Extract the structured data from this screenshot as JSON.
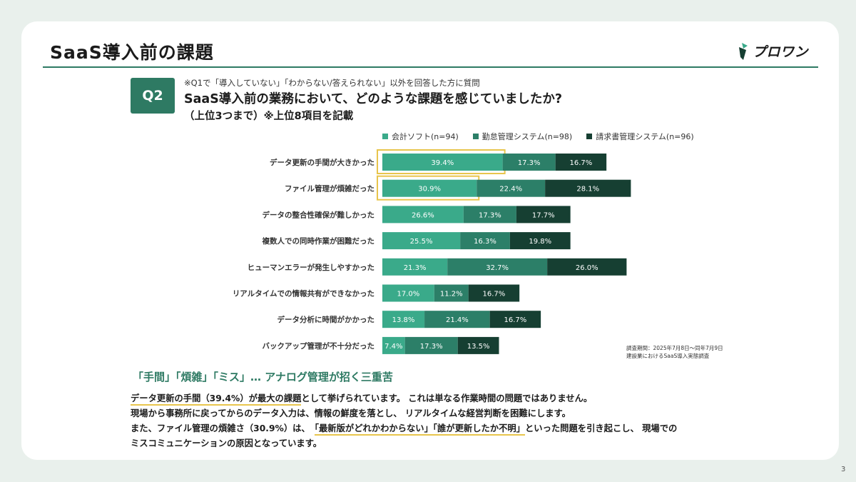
{
  "slide": {
    "title": "SaaS導入前の課題",
    "logo_text": "プロワン",
    "page_number": "3"
  },
  "question": {
    "badge": "Q2",
    "note": "※Q1で「導入していない」「わからない/答えられない」以外を回答した方に質問",
    "text": "SaaS導入前の業務において、どのような課題を感じていましたか?",
    "sub": "（上位3つまで）※上位8項目を記載"
  },
  "survey_note": {
    "line1": "調査期間：2025年7月8日〜同年7月9日",
    "line2": "建設業におけるSaaS導入実態調査"
  },
  "commentary": {
    "headline": "「手間」「煩雑」「ミス」… アナログ管理が招く三重苦",
    "line1_hl": "データ更新の手間（39.4%）が最大の課題",
    "line1_rest": "として挙げられています。 これは単なる作業時間の問題ではありません。",
    "line2": "現場から事務所に戻ってからのデータ入力は、情報の鮮度を落とし、 リアルタイムな経営判断を困難にします。",
    "line3_pre": "また、ファイル管理の煩雑さ（30.9%）は、　",
    "line3_hl": "「最新版がどれかわからない」「誰が更新したか不明」",
    "line3_post": "といった問題を引き起こし、 現場での",
    "line4": "ミスコミュニケーションの原因となっています。"
  },
  "colors": {
    "series1": "#3aaa8a",
    "series2": "#2c7f68",
    "series3": "#163f32",
    "highlight": "#e8c54c"
  },
  "chart_data": {
    "type": "bar",
    "orientation": "horizontal",
    "stacked": true,
    "categories": [
      "データ更新の手間が大きかった",
      "ファイル管理が煩雑だった",
      "データの整合性確保が難しかった",
      "複数人での同時作業が困難だった",
      "ヒューマンエラーが発生しやすかった",
      "リアルタイムでの情報共有ができなかった",
      "データ分析に時間がかかった",
      "バックアップ管理が不十分だった"
    ],
    "series": [
      {
        "name": "会計ソフト(n=94)",
        "values": [
          39.4,
          30.9,
          26.6,
          25.5,
          21.3,
          17.0,
          13.8,
          7.4
        ],
        "labels": [
          "39.4%",
          "30.9%",
          "26.6%",
          "25.5%",
          "21.3%",
          "17.0%",
          "13.8%",
          "7.4%"
        ]
      },
      {
        "name": "勤怠管理システム(n=98)",
        "values": [
          17.3,
          22.4,
          17.3,
          16.3,
          32.7,
          11.2,
          21.4,
          17.3
        ],
        "labels": [
          "17.3%",
          "22.4%",
          "17.3%",
          "16.3%",
          "32.7%",
          "11.2%",
          "21.4%",
          "17.3%"
        ]
      },
      {
        "name": "請求書管理システム(n=96)",
        "values": [
          16.7,
          28.1,
          17.7,
          19.8,
          26.0,
          16.7,
          16.7,
          13.5
        ],
        "labels": [
          "16.7%",
          "28.1%",
          "17.7%",
          "19.8%",
          "26.0%",
          "16.7%",
          "16.7%",
          "13.5%"
        ]
      }
    ],
    "highlighted": [
      {
        "category_index": 0,
        "series_index": 0
      },
      {
        "category_index": 1,
        "series_index": 0
      }
    ],
    "legend_position": "top",
    "grid": false
  }
}
